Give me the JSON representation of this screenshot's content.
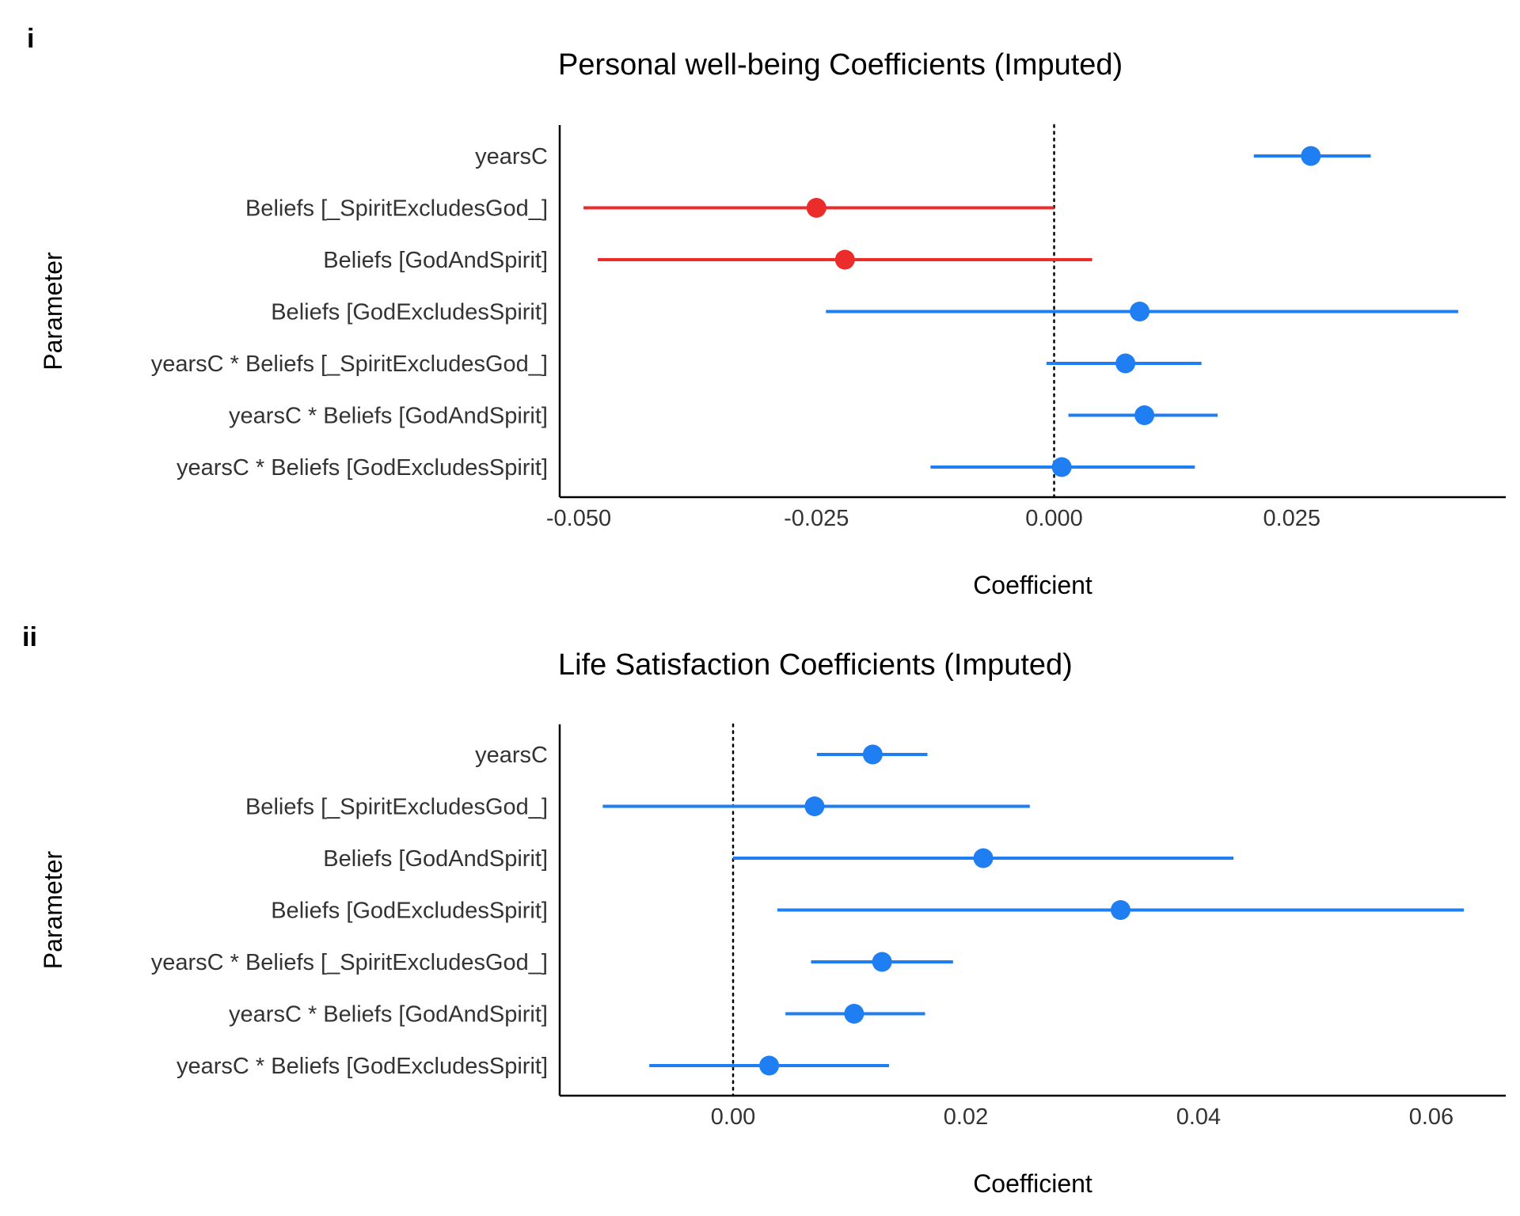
{
  "panels": [
    {
      "tag": "i"
    },
    {
      "tag": "ii"
    }
  ],
  "colors": {
    "positive": "#1f7ef2",
    "negative": "#ec2b2b",
    "axis": "#000000"
  },
  "chart_data": [
    {
      "type": "scatter",
      "subtype": "coefficient-plot-with-error-bars",
      "title": "Personal well-being Coefficients (Imputed)",
      "xlabel": "Coefficient",
      "ylabel": "Parameter",
      "xlim": [
        -0.052,
        0.0475
      ],
      "xticks": [
        -0.05,
        -0.025,
        0.0,
        0.025
      ],
      "xtick_labels": [
        "-0.050",
        "-0.025",
        "0.000",
        "0.025"
      ],
      "reference_line": 0.0,
      "categories": [
        "yearsC",
        "Beliefs [_SpiritExcludesGod_]",
        "Beliefs [GodAndSpirit]",
        "Beliefs [GodExcludesSpirit]",
        "yearsC * Beliefs [_SpiritExcludesGod_]",
        "yearsC * Beliefs [GodAndSpirit]",
        "yearsC * Beliefs [GodExcludesSpirit]"
      ],
      "estimates": [
        0.027,
        -0.025,
        -0.022,
        0.009,
        0.0075,
        0.0095,
        0.0008
      ],
      "ci_low": [
        0.021,
        -0.0495,
        -0.048,
        -0.024,
        -0.0008,
        0.0015,
        -0.013
      ],
      "ci_high": [
        0.0333,
        0.0,
        0.004,
        0.0425,
        0.0155,
        0.0172,
        0.0148
      ],
      "colors": [
        "positive",
        "negative",
        "negative",
        "positive",
        "positive",
        "positive",
        "positive"
      ],
      "grid": false
    },
    {
      "type": "scatter",
      "subtype": "coefficient-plot-with-error-bars",
      "title": "Life Satisfaction Coefficients (Imputed)",
      "xlabel": "Coefficient",
      "ylabel": "Parameter",
      "xlim": [
        -0.0149,
        0.0664
      ],
      "xticks": [
        0.0,
        0.02,
        0.04,
        0.06
      ],
      "xtick_labels": [
        "0.00",
        "0.02",
        "0.04",
        "0.06"
      ],
      "reference_line": 0.0,
      "categories": [
        "yearsC",
        "Beliefs [_SpiritExcludesGod_]",
        "Beliefs [GodAndSpirit]",
        "Beliefs [GodExcludesSpirit]",
        "yearsC * Beliefs [_SpiritExcludesGod_]",
        "yearsC * Beliefs [GodAndSpirit]",
        "yearsC * Beliefs [GodExcludesSpirit]"
      ],
      "estimates": [
        0.012,
        0.007,
        0.0215,
        0.0333,
        0.0128,
        0.0104,
        0.0031
      ],
      "ci_low": [
        0.0072,
        -0.0112,
        0.0,
        0.0038,
        0.0067,
        0.0045,
        -0.0072
      ],
      "ci_high": [
        0.0167,
        0.0255,
        0.043,
        0.0628,
        0.0189,
        0.0165,
        0.0134
      ],
      "colors": [
        "positive",
        "positive",
        "positive",
        "positive",
        "positive",
        "positive",
        "positive"
      ],
      "grid": false
    }
  ]
}
